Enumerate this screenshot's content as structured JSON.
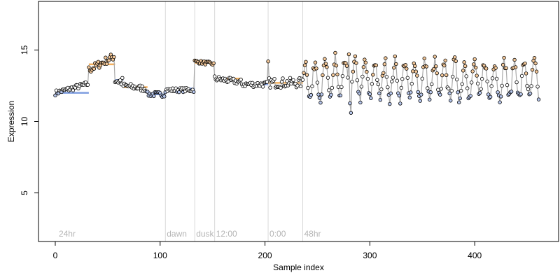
{
  "chart_data": {
    "type": "scatter",
    "title": "",
    "xlabel": "Sample index",
    "ylabel": "Expression",
    "xlim": [
      -16,
      480
    ],
    "ylim": [
      1.6,
      18.4
    ],
    "x_ticks": [
      0,
      100,
      200,
      300,
      400
    ],
    "y_ticks": [
      5,
      10,
      15
    ],
    "grid": false,
    "legend": "none",
    "colors": {
      "point_fill_low": "#b8c8ee",
      "point_fill_mid": "#ffffff",
      "point_fill_high": "#f5c99a",
      "point_stroke": "#000000",
      "segment_line": "#a9a9a9",
      "step_line_blue": "#7f9ee0",
      "step_line_orange": "#f2b060",
      "region_line": "#d8d8d8",
      "region_label": "#b4b4b4"
    },
    "regions": [
      {
        "x": 2,
        "label": "24hr"
      },
      {
        "x": 105,
        "label": "dawn"
      },
      {
        "x": 133,
        "label": "dusk"
      },
      {
        "x": 152,
        "label": "12:00"
      },
      {
        "x": 203,
        "label": "0:00"
      },
      {
        "x": 236,
        "label": "48hr"
      }
    ],
    "region_boundaries": [
      105,
      133,
      152,
      203,
      236
    ],
    "steps": [
      {
        "x_start": 0,
        "x_end": 32,
        "y": 12.0,
        "color": "blue"
      },
      {
        "x_start": 32,
        "x_end": 57,
        "y": 14.0,
        "color": "orange"
      },
      {
        "x_start": 57,
        "x_end": 65,
        "y": 12.9,
        "color": "blue"
      },
      {
        "x_start": 65,
        "x_end": 88,
        "y": 12.4,
        "color": "orange"
      },
      {
        "x_start": 88,
        "x_end": 105,
        "y": 11.9,
        "color": "blue"
      },
      {
        "x_start": 105,
        "x_end": 133,
        "y": 12.3,
        "color": "blue"
      },
      {
        "x_start": 133,
        "x_end": 152,
        "y": 14.1,
        "color": "orange"
      },
      {
        "x_start": 152,
        "x_end": 178,
        "y": 13.0,
        "color": "orange"
      },
      {
        "x_start": 178,
        "x_end": 203,
        "y": 12.6,
        "color": "blue"
      },
      {
        "x_start": 203,
        "x_end": 236,
        "y": 12.7,
        "color": "orange"
      }
    ],
    "series": [
      {
        "segments": [
          {
            "x_start": 0,
            "x_end": 32,
            "base": 12.0,
            "slope": 0.02,
            "noise": 0.18
          },
          {
            "x_start": 32,
            "x_end": 57,
            "base": 13.6,
            "slope": 0.04,
            "noise": 0.28
          },
          {
            "x_start": 57,
            "x_end": 65,
            "base": 12.9,
            "slope": -0.02,
            "noise": 0.35
          },
          {
            "x_start": 65,
            "x_end": 88,
            "base": 12.5,
            "slope": -0.01,
            "noise": 0.22
          },
          {
            "x_start": 88,
            "x_end": 105,
            "base": 11.9,
            "slope": 0.0,
            "noise": 0.18
          },
          {
            "x_start": 105,
            "x_end": 133,
            "base": 12.2,
            "slope": 0.0,
            "noise": 0.15
          },
          {
            "x_start": 133,
            "x_end": 152,
            "base": 14.2,
            "slope": -0.01,
            "noise": 0.12
          },
          {
            "x_start": 152,
            "x_end": 178,
            "base": 13.0,
            "slope": -0.01,
            "noise": 0.2
          },
          {
            "x_start": 178,
            "x_end": 203,
            "base": 12.6,
            "slope": 0.0,
            "noise": 0.2
          },
          {
            "x_start": 203,
            "x_end": 236,
            "base": 12.7,
            "slope": 0.0,
            "noise": 0.35
          },
          {
            "x_start": 236,
            "x_end": 462,
            "base": 12.9,
            "slope": 0.0,
            "noise": 0.4,
            "oscillation": {
              "amplitude": 1.3,
              "period": 9.5
            }
          }
        ],
        "outliers": [
          {
            "x": 282,
            "y": 10.6
          },
          {
            "x": 203,
            "y": 14.2
          },
          {
            "x": 267,
            "y": 14.8
          },
          {
            "x": 280,
            "y": 14.7
          }
        ]
      }
    ]
  }
}
